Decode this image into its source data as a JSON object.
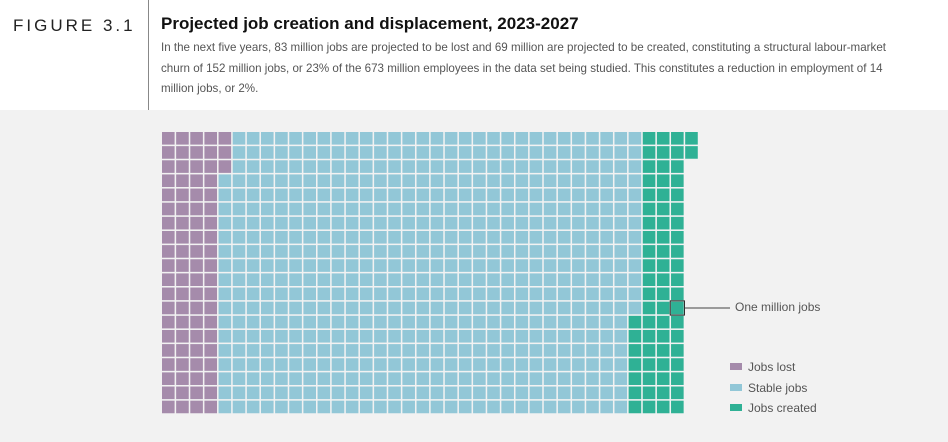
{
  "figure": {
    "label": "FIGURE 3.1",
    "title": "Projected job creation and displacement, 2023-2027",
    "subtitle": "In the next five years, 83 million jobs are projected to be lost and 69 million are projected to be created, constituting a structural labour-market churn of 152 million jobs, or 23% of the 673 million employees in the data set being studied. This constitutes a reduction in employment of 14 million jobs, or 2%."
  },
  "chart_data": {
    "type": "waffle",
    "unit_label": "One million jobs",
    "total_employees_millions": 673,
    "categories": [
      {
        "name": "Jobs lost",
        "value": 83,
        "color": "#a58bab"
      },
      {
        "name": "Stable jobs",
        "value": 590,
        "color": "#92c7d7"
      },
      {
        "name": "Jobs created",
        "value": 69,
        "color": "#2fb195"
      }
    ]
  },
  "annotation": {
    "label": "One million jobs"
  },
  "legend": [
    {
      "label": "Jobs lost",
      "color": "#a58bab"
    },
    {
      "label": "Stable jobs",
      "color": "#92c7d7"
    },
    {
      "label": "Jobs created",
      "color": "#2fb195"
    }
  ]
}
